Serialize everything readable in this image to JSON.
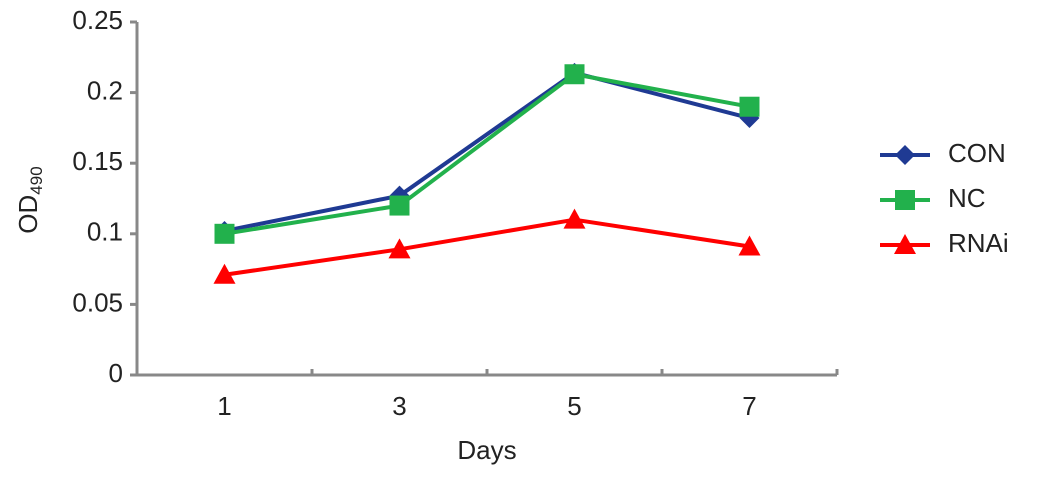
{
  "chart_data": {
    "type": "line",
    "xlabel": "Days",
    "ylabel": {
      "text": "OD",
      "subscript": "490"
    },
    "categories": [
      "1",
      "3",
      "5",
      "7"
    ],
    "series": [
      {
        "name": "CON",
        "color": "#1f3a93",
        "marker": "diamond",
        "values": [
          0.102,
          0.127,
          0.214,
          0.182
        ]
      },
      {
        "name": "NC",
        "color": "#22b14c",
        "marker": "square",
        "values": [
          0.1,
          0.12,
          0.213,
          0.19
        ]
      },
      {
        "name": "RNAi",
        "color": "#ff0000",
        "marker": "triangle",
        "values": [
          0.071,
          0.089,
          0.11,
          0.091
        ]
      }
    ],
    "ylim": [
      0,
      0.25
    ],
    "yticks": [
      0,
      0.05,
      0.1,
      0.15,
      0.2,
      0.25
    ],
    "grid": false,
    "legend": "right"
  }
}
